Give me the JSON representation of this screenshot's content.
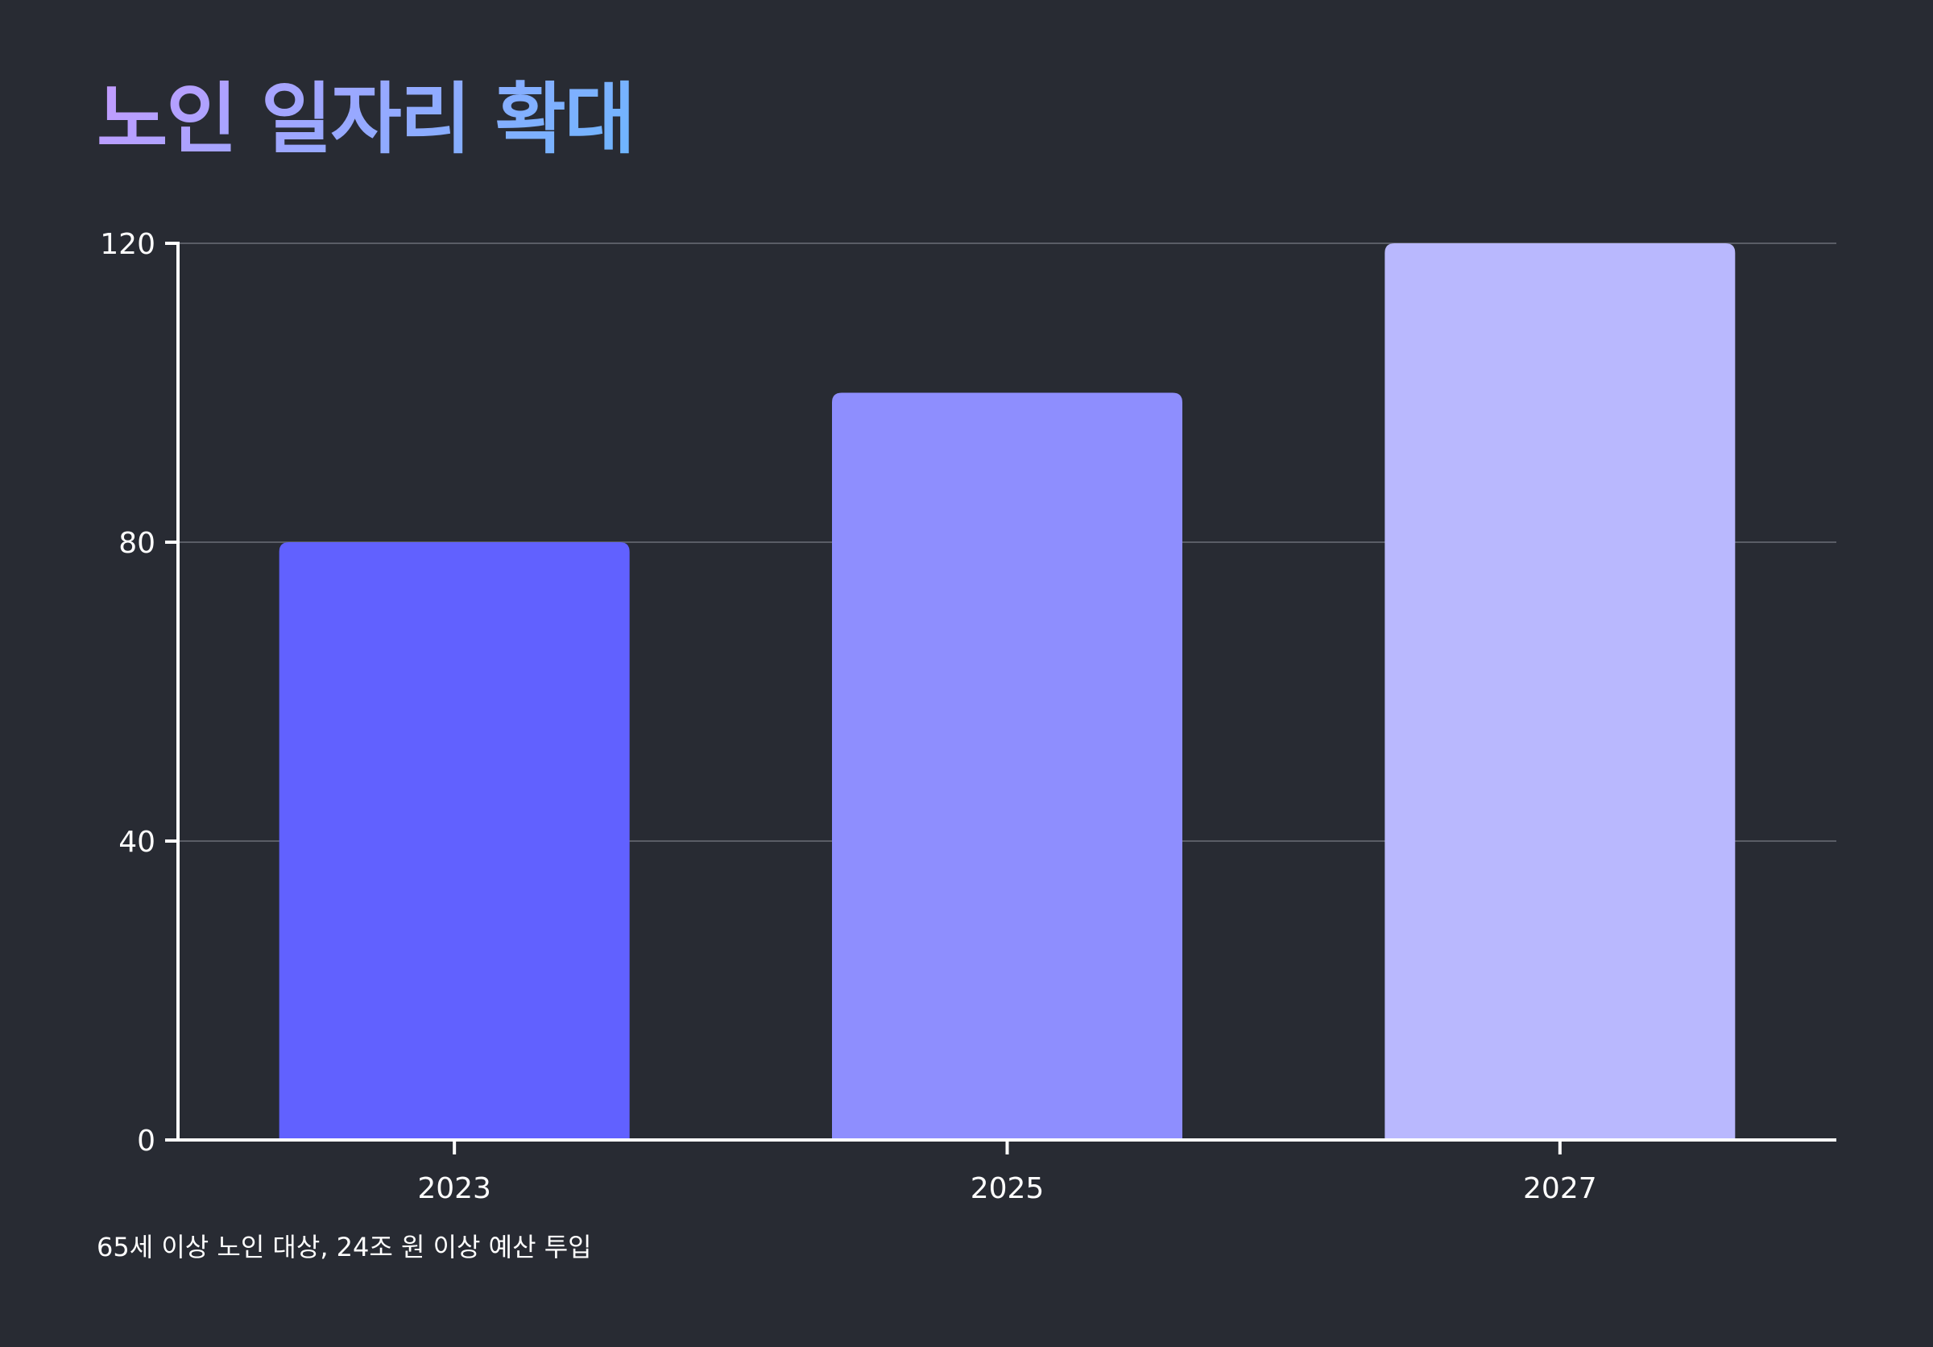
{
  "title": "노인 일자리 확대",
  "footnote": "65세 이상 노인 대상, 24조 원 이상 예산 투입",
  "colors": {
    "background": "#282b33",
    "grid": "#5a5d66",
    "axis": "#ffffff",
    "bars": [
      "#6161ff",
      "#8e8efe",
      "#b9b8fe"
    ]
  },
  "chart_data": {
    "type": "bar",
    "categories": [
      "2023",
      "2025",
      "2027"
    ],
    "values": [
      80,
      100,
      120
    ],
    "ylim": [
      0,
      120
    ],
    "yticks": [
      0,
      40,
      80,
      120
    ],
    "grid": true
  }
}
